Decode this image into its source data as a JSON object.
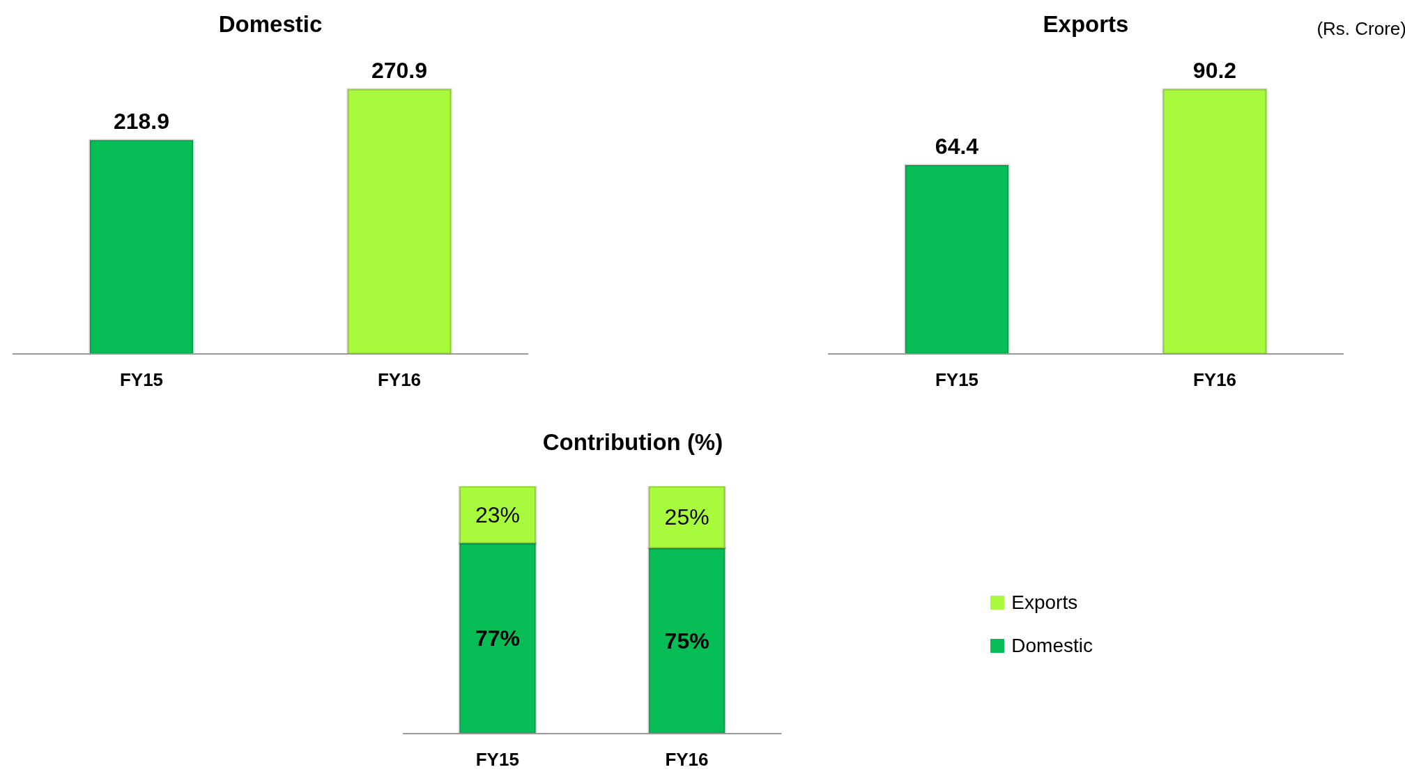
{
  "chart_data": [
    {
      "type": "bar",
      "title": "Domestic",
      "categories": [
        "FY15",
        "FY16"
      ],
      "values": [
        218.9,
        270.9
      ],
      "colors": [
        "#07bd55",
        "#a8fb3c"
      ],
      "data_labels": true,
      "legend": false
    },
    {
      "type": "bar",
      "title": "Exports",
      "annotations": [
        "(Rs. Crore)"
      ],
      "categories": [
        "FY15",
        "FY16"
      ],
      "values": [
        64.4,
        90.2
      ],
      "colors": [
        "#07bd55",
        "#a8fb3c"
      ],
      "data_labels": true,
      "legend": false
    },
    {
      "type": "bar",
      "title": "Contribution (%)",
      "stacked": true,
      "categories": [
        "FY15",
        "FY16"
      ],
      "legend": "right",
      "series": [
        {
          "name": "Domestic",
          "color": "#07bd55",
          "values": [
            77,
            75
          ],
          "value_labels": [
            "77%",
            "75%"
          ]
        },
        {
          "name": "Exports",
          "color": "#a8fb3c",
          "values": [
            23,
            25
          ],
          "value_labels": [
            "23%",
            "25%"
          ]
        }
      ]
    }
  ]
}
